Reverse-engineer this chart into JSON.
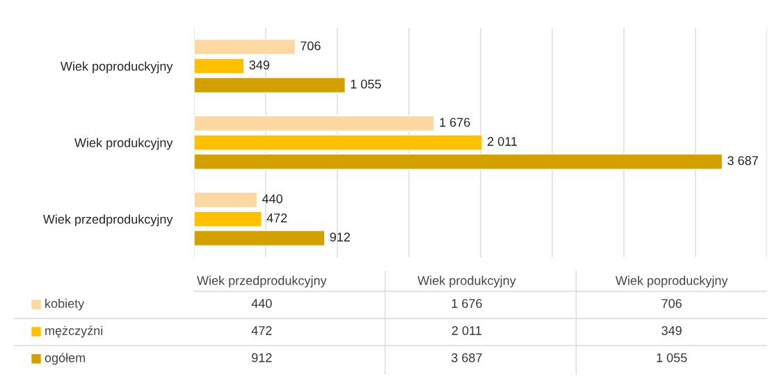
{
  "chart_data": {
    "type": "bar",
    "orientation": "horizontal",
    "categories": [
      "Wiek poproduckyjny",
      "Wiek produkcyjny",
      "Wiek przedprodukcyjny"
    ],
    "series": [
      {
        "name": "kobiety",
        "color": "#fdd8a0",
        "values": [
          706,
          1676,
          440
        ],
        "value_labels": [
          "706",
          "1 676",
          "440"
        ]
      },
      {
        "name": "mężczyźni",
        "color": "#ffc000",
        "values": [
          349,
          2011,
          472
        ],
        "value_labels": [
          "349",
          "2 011",
          "472"
        ]
      },
      {
        "name": "ogółem",
        "color": "#d4a000",
        "values": [
          1055,
          3687,
          912
        ],
        "value_labels": [
          "1 055",
          "3 687",
          "912"
        ]
      }
    ],
    "xlim": [
      0,
      4000
    ],
    "xticks": [
      {
        "value": 0,
        "label": null
      },
      {
        "value": 500,
        "label": null
      },
      {
        "value": 1000,
        "label": null
      },
      {
        "value": 1500,
        "label": null
      },
      {
        "value": 2000,
        "label": null
      },
      {
        "value": 2500,
        "label": null
      },
      {
        "value": 3000,
        "label": null
      },
      {
        "value": 3500,
        "label": null
      },
      {
        "value": 4000,
        "label": null
      }
    ],
    "grid": "x",
    "legend": "bottom",
    "tick_labels": "y"
  }
}
